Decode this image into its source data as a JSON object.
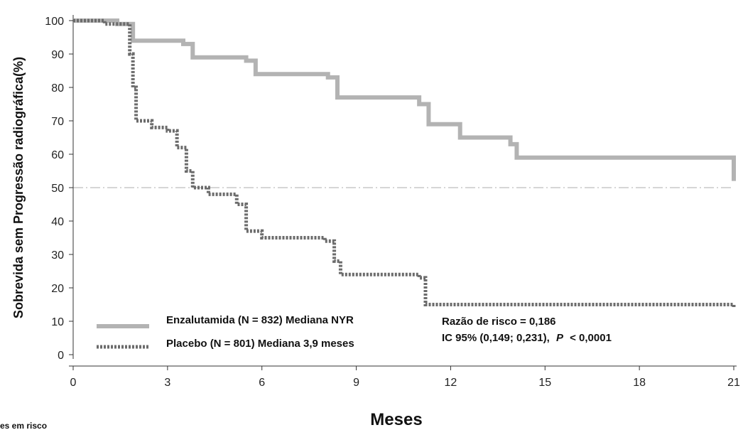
{
  "chart_data": {
    "type": "line",
    "xlabel": "Meses",
    "ylabel": "Sobrevida sem Progressão radiográfica(%)",
    "xlim": [
      0,
      21
    ],
    "ylim": [
      0,
      100
    ],
    "x_ticks": [
      "0",
      "3",
      "6",
      "9",
      "12",
      "15",
      "18",
      "21"
    ],
    "y_ticks": [
      "0",
      "10",
      "20",
      "30",
      "40",
      "50",
      "60",
      "70",
      "80",
      "90",
      "100"
    ],
    "reference_line_y": 50,
    "legend_placement": "bottom-left",
    "grid": false,
    "series": [
      {
        "name": "Enzalutamida (N = 832) Mediana NYR",
        "style": "solid",
        "color": "#b3b3b3",
        "x": [
          0,
          1.4,
          1.9,
          3.5,
          3.8,
          5.5,
          5.8,
          8.1,
          8.4,
          11.0,
          11.3,
          12.3,
          13.9,
          14.1,
          21
        ],
        "y": [
          100,
          99,
          94,
          93,
          89,
          88,
          84,
          83,
          77,
          75,
          69,
          65,
          63,
          59,
          52
        ]
      },
      {
        "name": "Placebo (N = 801) Mediana 3,9 meses",
        "style": "dotted",
        "color": "#6b6b6b",
        "x": [
          0,
          1.0,
          1.8,
          1.9,
          2.0,
          2.5,
          3.0,
          3.3,
          3.6,
          3.8,
          4.3,
          5.2,
          5.5,
          6.0,
          8.0,
          8.3,
          8.5,
          11.0,
          11.2,
          19.7,
          21
        ],
        "y": [
          100,
          99,
          90,
          80,
          70,
          68,
          67,
          62,
          55,
          50,
          48,
          45,
          37,
          35,
          34,
          28,
          24,
          23,
          15,
          15,
          14
        ]
      }
    ],
    "annotations": [
      "Razão de risco = 0,186",
      "IC 95% (0,149; 0,231),",
      "P",
      "< 0,0001"
    ]
  },
  "cut_text": "es em risco",
  "colors": {
    "enzalutamida": "#b3b3b3",
    "placebo": "#6b6b6b",
    "reference": "#c8c8c8",
    "axis": "#333333"
  }
}
